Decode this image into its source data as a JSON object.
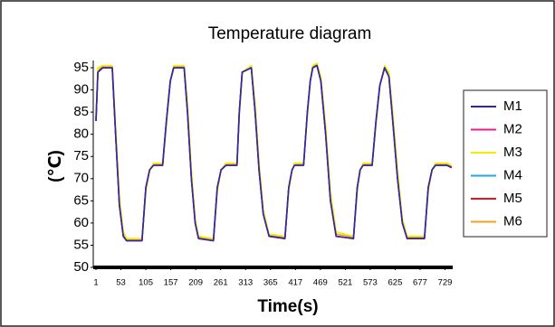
{
  "chart_data": {
    "type": "line",
    "title": "Temperature diagram",
    "xlabel": "Time(s)",
    "ylabel": "(℃)",
    "x": [
      1,
      5,
      15,
      35,
      42,
      50,
      58,
      65,
      97,
      105,
      113,
      121,
      140,
      148,
      156,
      163,
      185,
      192,
      200,
      208,
      215,
      246,
      254,
      262,
      272,
      295,
      300,
      306,
      325,
      333,
      341,
      350,
      362,
      395,
      403,
      410,
      415,
      434,
      442,
      448,
      453,
      462,
      470,
      480,
      490,
      502,
      538,
      546,
      552,
      558,
      577,
      585,
      593,
      603,
      612,
      620,
      630,
      640,
      650,
      686,
      694,
      702,
      709,
      733,
      743
    ],
    "series": [
      {
        "name": "M1",
        "color": "#2a2aa8",
        "values": [
          83,
          94,
          95,
          95,
          80,
          64,
          57,
          56,
          56,
          68,
          72,
          73,
          73,
          83,
          92,
          95,
          95,
          85,
          70,
          60,
          56.5,
          56,
          68,
          72,
          73,
          73,
          85,
          94,
          95,
          85,
          72,
          62,
          57,
          56.5,
          68,
          72,
          73,
          73,
          85,
          92,
          95,
          95.5,
          92,
          80,
          65,
          57,
          56.5,
          68,
          72,
          73,
          73,
          83,
          91,
          95,
          93,
          83,
          70,
          60,
          56.5,
          56.5,
          68,
          72,
          73,
          73,
          72.5
        ]
      },
      {
        "name": "M2",
        "color": "#e8208c",
        "values": [
          83,
          94,
          95,
          95,
          80,
          64,
          57,
          56,
          56,
          68,
          72,
          73,
          73,
          83,
          92,
          95,
          95,
          85,
          70,
          60,
          56.5,
          56,
          68,
          72,
          73,
          73,
          85,
          94,
          95,
          85,
          72,
          62,
          57,
          56.5,
          68,
          72,
          73,
          73,
          85,
          92,
          95,
          95.5,
          92,
          80,
          65,
          57,
          56.5,
          68,
          72,
          73,
          73,
          83,
          91,
          95,
          93,
          83,
          70,
          60,
          56.5,
          56.5,
          68,
          72,
          73,
          73,
          72.5
        ]
      },
      {
        "name": "M3",
        "color": "#f2ee00",
        "values": [
          84,
          95,
          95.5,
          95.5,
          82,
          66,
          58,
          56.5,
          56.5,
          67,
          72,
          73.5,
          73.5,
          82,
          92,
          95.5,
          95.5,
          87,
          72,
          61,
          57,
          56.5,
          67,
          72,
          73.5,
          73.5,
          84,
          94,
          95.5,
          87,
          74,
          63,
          57.5,
          57,
          67,
          72,
          73.5,
          73.5,
          84,
          92,
          95.5,
          96,
          93,
          82,
          67,
          58,
          57,
          67,
          72,
          73.5,
          73.5,
          82,
          91,
          95.5,
          94,
          85,
          72,
          61,
          57,
          57,
          67,
          72,
          73.5,
          73.5,
          73
        ]
      },
      {
        "name": "M4",
        "color": "#22a8e0",
        "values": [
          83,
          94,
          95,
          95,
          80,
          64,
          57,
          56,
          56,
          68,
          72,
          73,
          73,
          83,
          92,
          95,
          95,
          85,
          70,
          60,
          56.5,
          56,
          68,
          72,
          73,
          73,
          85,
          94,
          95,
          85,
          72,
          62,
          57,
          56.5,
          68,
          72,
          73,
          73,
          85,
          92,
          95,
          95.5,
          92,
          80,
          65,
          57,
          56.5,
          68,
          72,
          73,
          73,
          83,
          91,
          95,
          93,
          83,
          70,
          60,
          56.5,
          56.5,
          68,
          72,
          73,
          73,
          72.5
        ]
      },
      {
        "name": "M5",
        "color": "#e81414",
        "values": [
          83,
          94,
          95,
          95,
          80,
          64,
          57,
          56,
          56,
          68,
          72,
          73,
          73,
          83,
          92,
          95,
          95,
          85,
          70,
          60,
          56.5,
          56,
          68,
          72,
          73,
          73,
          85,
          94,
          95,
          85,
          72,
          62,
          57,
          56.5,
          68,
          72,
          73,
          73,
          85,
          92,
          95,
          95.5,
          92,
          80,
          65,
          57,
          56.5,
          68,
          72,
          73,
          73,
          83,
          91,
          95,
          93,
          83,
          70,
          60,
          56.5,
          56.5,
          68,
          72,
          73,
          73,
          72.5
        ]
      },
      {
        "name": "M6",
        "color": "#f5a020",
        "values": [
          83.5,
          94.5,
          95.2,
          95.2,
          81,
          65,
          57.5,
          56.2,
          56.2,
          67.5,
          72,
          73.2,
          73.2,
          82.5,
          92,
          95.2,
          95.2,
          86,
          71,
          60.5,
          56.8,
          56.2,
          67.5,
          72,
          73.2,
          73.2,
          84.5,
          94,
          95.2,
          86,
          73,
          62.5,
          57.2,
          56.8,
          67.5,
          72,
          73.2,
          73.2,
          84.5,
          92,
          95.2,
          95.8,
          92.5,
          81,
          66,
          57.5,
          56.8,
          67.5,
          72,
          73.2,
          73.2,
          82.5,
          91,
          95.2,
          93.5,
          84,
          71,
          60.5,
          56.8,
          56.8,
          67.5,
          72,
          73.2,
          73.2,
          72.8
        ]
      }
    ],
    "xlim": [
      1,
      745
    ],
    "xticks": [
      1,
      53,
      105,
      157,
      209,
      261,
      313,
      365,
      417,
      469,
      521,
      573,
      625,
      677,
      729
    ],
    "ylim": [
      50,
      95
    ],
    "yticks": [
      50,
      55,
      60,
      65,
      70,
      75,
      80,
      85,
      90,
      95
    ],
    "grid": false,
    "legend": "right"
  }
}
